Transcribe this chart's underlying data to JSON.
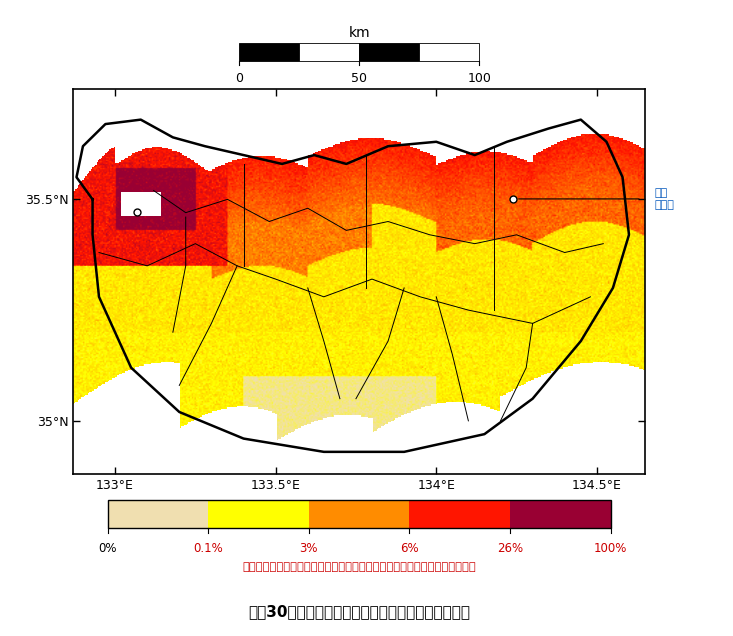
{
  "title": "今後30年間に震度６弱以上の揺れに見舞われる確率",
  "subtitle": "（モデル計算条件により確率ゼロまたは評価対象外のメッシュは白色表示）",
  "colorbar_labels": [
    "0%",
    "0.1%",
    "3%",
    "6%",
    "26%",
    "100%"
  ],
  "colorbar_colors": [
    "#F0DFB0",
    "#FFFF00",
    "#FF8C00",
    "#FF1500",
    "#990033"
  ],
  "map_lon_min": 132.87,
  "map_lon_max": 134.65,
  "map_lat_min": 34.88,
  "map_lat_max": 35.75,
  "x_ticks": [
    133.0,
    133.5,
    134.0,
    134.5
  ],
  "x_labels": [
    "133°E",
    "133.5°E",
    "134°E",
    "134.5°E"
  ],
  "y_ticks": [
    35.0,
    35.5
  ],
  "y_labels": [
    "35°N",
    "35.5°N"
  ],
  "tottori_lon": 134.238,
  "tottori_lat": 35.501,
  "west_marker_lon": 133.067,
  "west_marker_lat": 35.472,
  "tottori_label": "鳥取\n市役所",
  "scalebar_km_label": "km",
  "scalebar_ticks": [
    "0",
    "50",
    "100"
  ]
}
